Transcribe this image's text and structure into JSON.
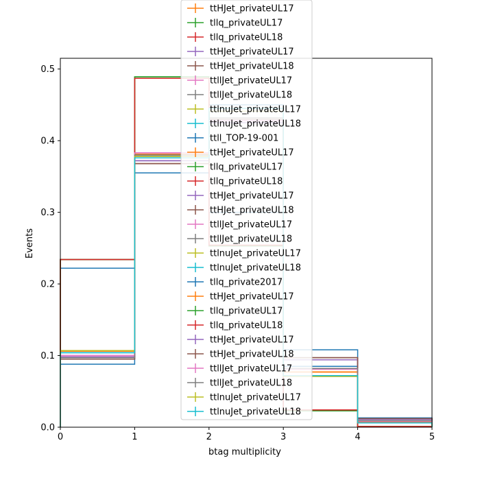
{
  "chart_data": {
    "type": "step",
    "xlabel": "btag multiplicity",
    "ylabel": "Events",
    "xlim": [
      0,
      5
    ],
    "ylim": [
      0,
      0.515
    ],
    "x_ticks": [
      "0",
      "1",
      "2",
      "3",
      "4",
      "5"
    ],
    "y_ticks": [
      "0.0",
      "0.1",
      "0.2",
      "0.3",
      "0.4",
      "0.5"
    ],
    "bin_edges": [
      0,
      1,
      2,
      3,
      4,
      5
    ],
    "legend_position": "upper center",
    "series": [
      {
        "name": "ttHJet_privateUL17",
        "color": "#ff7f0e",
        "values": [
          0.106,
          0.381,
          0.43,
          0.077,
          0.007
        ]
      },
      {
        "name": "tllq_privateUL17",
        "color": "#2ca02c",
        "values": [
          0.234,
          0.489,
          0.253,
          0.023,
          0.001
        ]
      },
      {
        "name": "tllq_privateUL18",
        "color": "#d62728",
        "values": [
          0.234,
          0.487,
          0.254,
          0.024,
          0.001
        ]
      },
      {
        "name": "ttHJet_privateUL17",
        "color": "#9467bd",
        "values": [
          0.098,
          0.372,
          0.425,
          0.094,
          0.011
        ]
      },
      {
        "name": "ttHJet_privateUL18",
        "color": "#8c564b",
        "values": [
          0.095,
          0.368,
          0.43,
          0.097,
          0.012
        ]
      },
      {
        "name": "ttllJet_privateUL17",
        "color": "#e377c2",
        "values": [
          0.1,
          0.383,
          0.428,
          0.081,
          0.008
        ]
      },
      {
        "name": "ttllJet_privateUL18",
        "color": "#7f7f7f",
        "values": [
          0.097,
          0.38,
          0.432,
          0.082,
          0.009
        ]
      },
      {
        "name": "ttlnuJet_privateUL17",
        "color": "#bcbd22",
        "values": [
          0.107,
          0.378,
          0.441,
          0.071,
          0.006
        ]
      },
      {
        "name": "ttlnuJet_privateUL18",
        "color": "#17becf",
        "values": [
          0.104,
          0.376,
          0.445,
          0.072,
          0.006
        ]
      },
      {
        "name": "ttll_TOP-19-001",
        "color": "#1f77b4",
        "values": [
          0.222,
          0.355,
          0.3,
          0.108,
          0.013
        ]
      },
      {
        "name": "ttHJet_privateUL17",
        "color": "#ff7f0e",
        "values": [
          0.106,
          0.381,
          0.43,
          0.077,
          0.007
        ]
      },
      {
        "name": "tllq_privateUL17",
        "color": "#2ca02c",
        "values": [
          0.234,
          0.489,
          0.253,
          0.023,
          0.001
        ]
      },
      {
        "name": "tllq_privateUL18",
        "color": "#d62728",
        "values": [
          0.234,
          0.487,
          0.254,
          0.024,
          0.001
        ]
      },
      {
        "name": "ttHJet_privateUL17",
        "color": "#9467bd",
        "values": [
          0.098,
          0.372,
          0.425,
          0.094,
          0.011
        ]
      },
      {
        "name": "ttHJet_privateUL18",
        "color": "#8c564b",
        "values": [
          0.095,
          0.368,
          0.43,
          0.097,
          0.012
        ]
      },
      {
        "name": "ttllJet_privateUL17",
        "color": "#e377c2",
        "values": [
          0.1,
          0.383,
          0.428,
          0.081,
          0.008
        ]
      },
      {
        "name": "ttllJet_privateUL18",
        "color": "#7f7f7f",
        "values": [
          0.097,
          0.38,
          0.432,
          0.082,
          0.009
        ]
      },
      {
        "name": "ttlnuJet_privateUL17",
        "color": "#bcbd22",
        "values": [
          0.107,
          0.378,
          0.441,
          0.071,
          0.006
        ]
      },
      {
        "name": "ttlnuJet_privateUL18",
        "color": "#17becf",
        "values": [
          0.104,
          0.376,
          0.445,
          0.072,
          0.006
        ]
      },
      {
        "name": "tllq_private2017",
        "color": "#1f77b4",
        "values": [
          0.088,
          0.378,
          0.45,
          0.085,
          0.007
        ]
      },
      {
        "name": "ttHJet_privateUL17",
        "color": "#ff7f0e",
        "values": [
          0.106,
          0.381,
          0.43,
          0.077,
          0.007
        ]
      },
      {
        "name": "tllq_privateUL17",
        "color": "#2ca02c",
        "values": [
          0.234,
          0.489,
          0.253,
          0.023,
          0.001
        ]
      },
      {
        "name": "tllq_privateUL18",
        "color": "#d62728",
        "values": [
          0.234,
          0.487,
          0.254,
          0.024,
          0.001
        ]
      },
      {
        "name": "ttHJet_privateUL17",
        "color": "#9467bd",
        "values": [
          0.098,
          0.372,
          0.425,
          0.094,
          0.011
        ]
      },
      {
        "name": "ttHJet_privateUL18",
        "color": "#8c564b",
        "values": [
          0.095,
          0.368,
          0.43,
          0.097,
          0.012
        ]
      },
      {
        "name": "ttllJet_privateUL17",
        "color": "#e377c2",
        "values": [
          0.1,
          0.383,
          0.428,
          0.081,
          0.008
        ]
      },
      {
        "name": "ttllJet_privateUL18",
        "color": "#7f7f7f",
        "values": [
          0.097,
          0.38,
          0.432,
          0.082,
          0.009
        ]
      },
      {
        "name": "ttlnuJet_privateUL17",
        "color": "#bcbd22",
        "values": [
          0.107,
          0.378,
          0.441,
          0.071,
          0.006
        ]
      },
      {
        "name": "ttlnuJet_privateUL18",
        "color": "#17becf",
        "values": [
          0.104,
          0.376,
          0.445,
          0.072,
          0.006
        ]
      }
    ]
  }
}
